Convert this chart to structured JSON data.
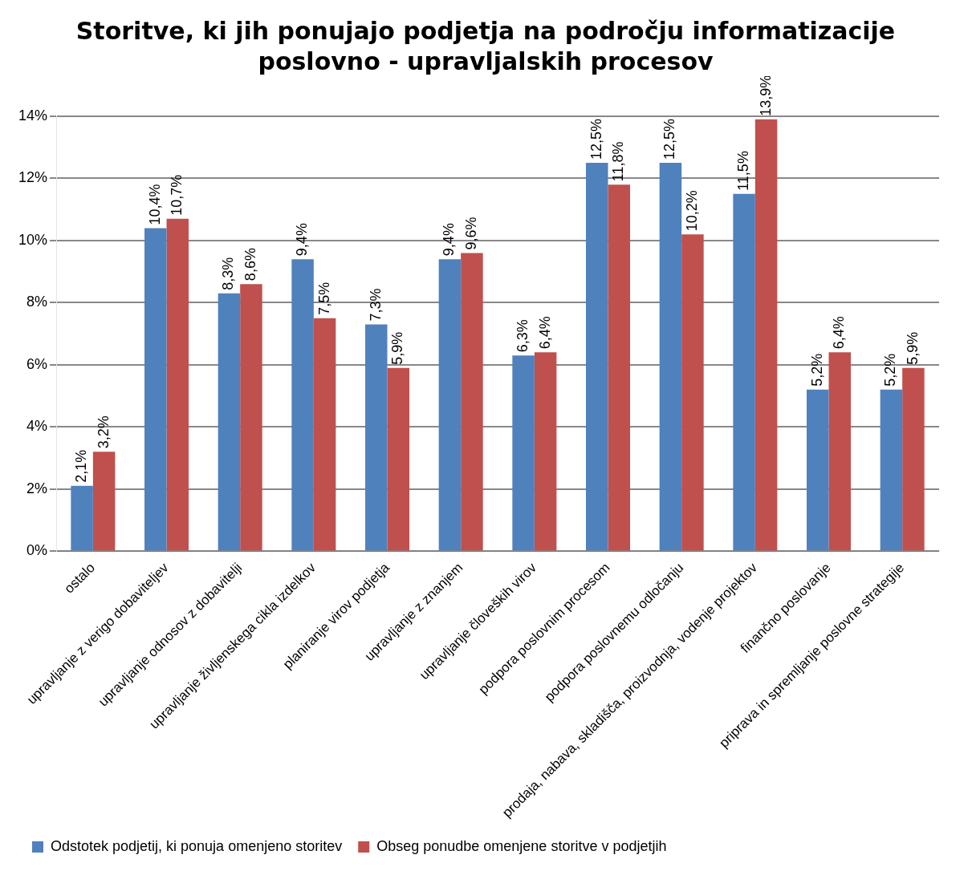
{
  "chart_data": {
    "type": "bar",
    "title": "Storitve, ki jih ponujajo podjetja na področju informatizacije poslovno - upravljalskih procesov",
    "categories": [
      "ostalo",
      "upravljanje z verigo dobaviteljev",
      "upravljanje odnosov z dobavitelji",
      "upravljanje življenskega cikla izdelkov",
      "planiranje virov podjetja",
      "upravljanje z znanjem",
      "upravljanje človeških virov",
      "podpora poslovnim procesom",
      "podpora poslovnemu odločanju",
      "prodaja, nabava, skladišča, proizvodnja, vodenje projektov",
      "finančno poslovanje",
      "priprava in spremljanje poslovne strategije"
    ],
    "series": [
      {
        "name": "Odstotek podjetij, ki ponuja omenjeno storitev",
        "color": "#4f81bd",
        "values": [
          2.1,
          10.4,
          8.3,
          9.4,
          7.3,
          9.4,
          6.3,
          12.5,
          12.5,
          11.5,
          5.2,
          5.2
        ],
        "value_labels": [
          "2,1%",
          "10,4%",
          "8,3%",
          "9,4%",
          "7,3%",
          "9,4%",
          "6,3%",
          "12,5%",
          "12,5%",
          "11,5%",
          "5,2%",
          "5,2%"
        ]
      },
      {
        "name": "Obseg ponudbe omenjene storitve v podjetjih",
        "color": "#c0504d",
        "values": [
          3.2,
          10.7,
          8.6,
          7.5,
          5.9,
          9.6,
          6.4,
          11.8,
          10.2,
          13.9,
          6.4,
          5.9
        ],
        "value_labels": [
          "3,2%",
          "10,7%",
          "8,6%",
          "7,5%",
          "5,9%",
          "9,6%",
          "6,4%",
          "11,8%",
          "10,2%",
          "13,9%",
          "6,4%",
          "5,9%"
        ]
      }
    ],
    "ylim": [
      0,
      14
    ],
    "yticks": [
      {
        "value": 0,
        "label": "0%"
      },
      {
        "value": 2,
        "label": "2%"
      },
      {
        "value": 4,
        "label": "4%"
      },
      {
        "value": 6,
        "label": "6%"
      },
      {
        "value": 8,
        "label": "8%"
      },
      {
        "value": 10,
        "label": "10%"
      },
      {
        "value": 12,
        "label": "12%"
      },
      {
        "value": 14,
        "label": "14%"
      }
    ],
    "grid": "y",
    "legend": "bottom"
  }
}
